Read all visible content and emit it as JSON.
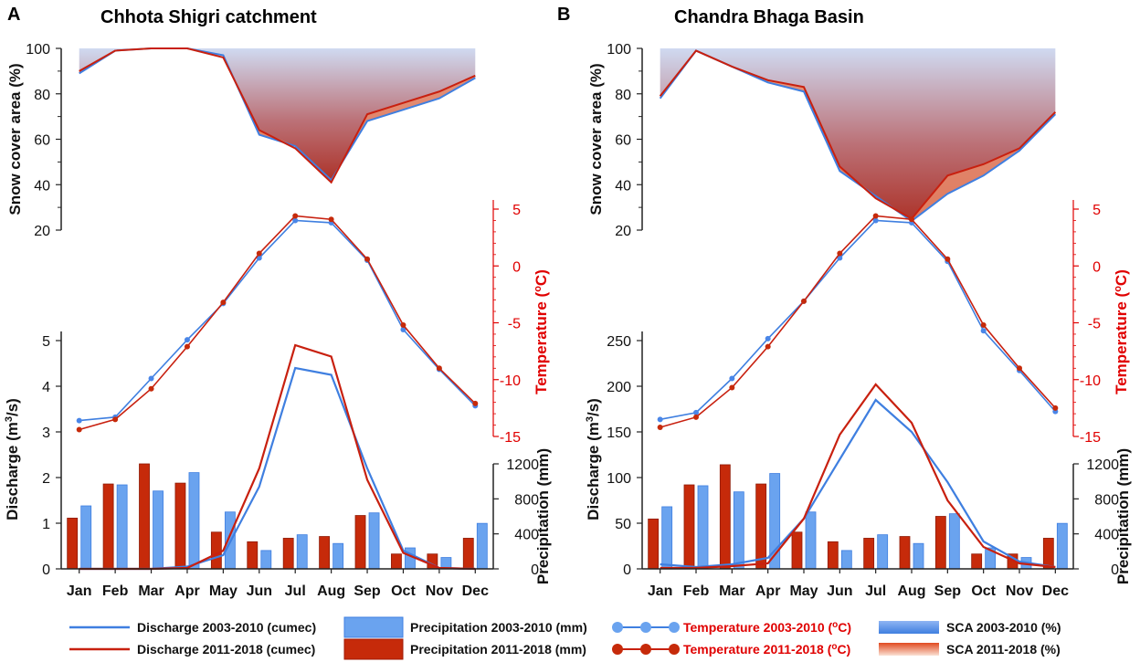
{
  "colors": {
    "blue": "#4a86e8",
    "blue_line": "#3f7fe0",
    "blue_bar": "#6aa3ef",
    "red": "#c62a0a",
    "red_line": "#c8200f",
    "red_axis": "#e00000",
    "sca_top": "#cdd8f0",
    "sca_bottom": "#a8281e",
    "sca_2011_fill": "#e88a6a"
  },
  "legend": {
    "discharge_2003": "Discharge 2003-2010 (cumec)",
    "discharge_2011": "Discharge 2011-2018 (cumec)",
    "precip_2003": "Precipitation 2003-2010 (mm)",
    "precip_2011": "Precipitation 2011-2018 (mm)",
    "temp_2003": "Temperature 2003-2010 (",
    "temp_2011": "Temperature 2011-2018 (",
    "temp_unit_o": "o",
    "temp_unit_c": "C)",
    "sca_2003": "SCA 2003-2010 (%)",
    "sca_2011": "SCA 2011-2018 (%)"
  },
  "chart_data": [
    {
      "panel": "A",
      "title": "Chhota Shigri catchment",
      "type": "line+bar+area",
      "categories": [
        "Jan",
        "Feb",
        "Mar",
        "Apr",
        "May",
        "Jun",
        "Jul",
        "Aug",
        "Sep",
        "Oct",
        "Nov",
        "Dec"
      ],
      "sca": {
        "ylabel": "Snow cover area (%)",
        "yticks": [
          "20",
          "40",
          "60",
          "80",
          "100"
        ],
        "ylim": [
          20,
          100
        ],
        "series": [
          {
            "name": "SCA 2003-2010 (%)",
            "values": [
              89,
              99,
              100,
              100,
              97,
              62,
              57,
              42,
              68,
              73,
              78,
              87
            ]
          },
          {
            "name": "SCA 2011-2018 (%)",
            "values": [
              90,
              99,
              100,
              100,
              96,
              64,
              56,
              41,
              71,
              76,
              81,
              88
            ]
          }
        ]
      },
      "temperature": {
        "ylabel": "Temperature (",
        "ylabel_o": "o",
        "ylabel_c": "C)",
        "yticks": [
          "5",
          "0",
          "-5",
          "-10",
          "-15"
        ],
        "ylim": [
          -15,
          5
        ],
        "series": [
          {
            "name": "Temperature 2003-2010 (oC)",
            "values": [
              -13.6,
              -13.3,
              -9.9,
              -6.5,
              -3.3,
              0.7,
              4.0,
              3.8,
              0.5,
              -5.6,
              -9.1,
              -12.3
            ]
          },
          {
            "name": "Temperature 2011-2018 (oC)",
            "values": [
              -14.4,
              -13.5,
              -10.8,
              -7.1,
              -3.2,
              1.1,
              4.4,
              4.1,
              0.6,
              -5.2,
              -9.0,
              -12.1
            ]
          }
        ]
      },
      "discharge": {
        "ylabel": "Discharge (m",
        "ylabel_sup": "3",
        "ylabel_end": "/s)",
        "yticks": [
          "0",
          "1",
          "2",
          "3",
          "4",
          "5"
        ],
        "ylim": [
          0,
          5
        ],
        "series": [
          {
            "name": "Discharge 2003-2010 (cumec)",
            "values": [
              0,
              0,
              0,
              0.05,
              0.3,
              1.8,
              4.4,
              4.25,
              2.2,
              0.4,
              0.02,
              0
            ]
          },
          {
            "name": "Discharge 2011-2018 (cumec)",
            "values": [
              0,
              0,
              0,
              0.02,
              0.4,
              2.2,
              4.9,
              4.65,
              1.95,
              0.35,
              0.02,
              0
            ]
          }
        ]
      },
      "precipitation": {
        "ylabel": "Precipitation (mm)",
        "yticks": [
          "0",
          "400",
          "800",
          "1200"
        ],
        "ylim": [
          0,
          1200
        ],
        "series": [
          {
            "name": "Precipitation 2011-2018 (mm)",
            "values": [
              580,
              970,
              1200,
              980,
              420,
              310,
              350,
              370,
              610,
              170,
              170,
              350
            ]
          },
          {
            "name": "Precipitation 2003-2010 (mm)",
            "values": [
              720,
              960,
              890,
              1100,
              650,
              210,
              390,
              290,
              640,
              240,
              130,
              520
            ]
          }
        ]
      }
    },
    {
      "panel": "B",
      "title": "Chandra Bhaga Basin",
      "type": "line+bar+area",
      "categories": [
        "Jan",
        "Feb",
        "Mar",
        "Apr",
        "May",
        "Jun",
        "Jul",
        "Aug",
        "Sep",
        "Oct",
        "Nov",
        "Dec"
      ],
      "sca": {
        "ylabel": "Snow cover area (%)",
        "yticks": [
          "20",
          "40",
          "60",
          "80",
          "100"
        ],
        "ylim": [
          20,
          100
        ],
        "series": [
          {
            "name": "SCA 2003-2010 (%)",
            "values": [
              78,
              99,
              92,
              85,
              81,
              46,
              35,
              24,
              36,
              44,
              55,
              71
            ]
          },
          {
            "name": "SCA 2011-2018 (%)",
            "values": [
              79,
              99,
              92,
              86,
              83,
              48,
              34,
              25,
              44,
              49,
              56,
              72
            ]
          }
        ]
      },
      "temperature": {
        "ylabel": "Temperature (",
        "ylabel_o": "o",
        "ylabel_c": "C)",
        "yticks": [
          "5",
          "0",
          "-5",
          "-10",
          "-15"
        ],
        "ylim": [
          -15,
          5
        ],
        "series": [
          {
            "name": "Temperature 2003-2010 (oC)",
            "values": [
              -13.5,
              -12.9,
              -9.9,
              -6.4,
              -3.1,
              0.7,
              4.0,
              3.8,
              0.4,
              -5.7,
              -9.2,
              -12.8
            ]
          },
          {
            "name": "Temperature 2011-2018 (oC)",
            "values": [
              -14.2,
              -13.3,
              -10.7,
              -7.1,
              -3.1,
              1.1,
              4.4,
              4.1,
              0.6,
              -5.2,
              -9.0,
              -12.5
            ]
          }
        ]
      },
      "discharge": {
        "ylabel": "Discharge (m",
        "ylabel_sup": "3",
        "ylabel_end": "/s)",
        "yticks": [
          "0",
          "50",
          "100",
          "150",
          "200",
          "250"
        ],
        "ylim": [
          0,
          250
        ],
        "series": [
          {
            "name": "Discharge 2003-2010 (cumec)",
            "values": [
              5,
              2,
              5,
              12,
              55,
              120,
              185,
              150,
              95,
              30,
              8,
              2
            ]
          },
          {
            "name": "Discharge 2011-2018 (cumec)",
            "values": [
              1,
              1,
              3,
              6,
              55,
              147,
              202,
              160,
              75,
              24,
              6,
              2
            ]
          }
        ]
      },
      "precipitation": {
        "ylabel": "Precipitation (mm)",
        "yticks": [
          "0",
          "400",
          "800",
          "1200"
        ],
        "ylim": [
          0,
          1200
        ],
        "series": [
          {
            "name": "Precipitation 2011-2018 (mm)",
            "values": [
              570,
              960,
              1190,
              970,
              420,
              310,
              350,
              370,
              600,
              170,
              170,
              350
            ]
          },
          {
            "name": "Precipitation 2003-2010 (mm)",
            "values": [
              710,
              950,
              880,
              1090,
              650,
              210,
              390,
              290,
              630,
              240,
              130,
              520
            ]
          }
        ]
      }
    }
  ]
}
